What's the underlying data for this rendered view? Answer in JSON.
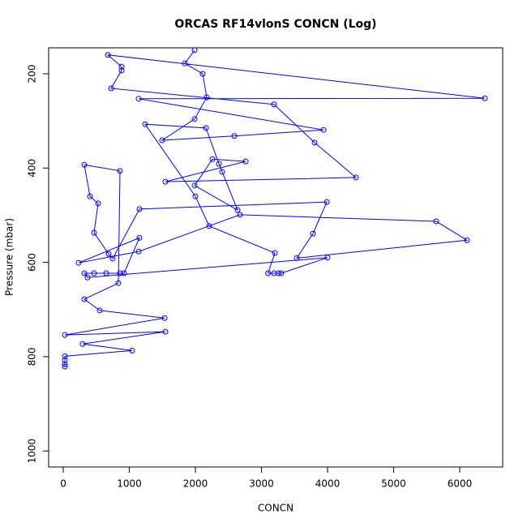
{
  "chart_data": {
    "type": "line",
    "title": "ORCAS RF14vlonS CONCN (Log)",
    "x_label": "CONCN",
    "y_label": "Pressure (mbar)",
    "color": "#0000ff",
    "xlim": [
      -221,
      6650
    ],
    "ylim": [
      1034,
      145
    ],
    "xticks": [
      0,
      1000,
      2000,
      3000,
      4000,
      5000,
      6000
    ],
    "yticks": [
      200,
      400,
      600,
      800,
      1000
    ],
    "x": [
      1988,
      1840,
      2110,
      2172,
      1988,
      1497,
      2589,
      3939,
      1141,
      6380,
      675,
      883,
      883,
      724,
      3190,
      3804,
      4429,
      1546,
      2761,
      2258,
      1988,
      2638,
      2405,
      2356,
      2160,
      1239,
      2000,
      2209,
      3202,
      3100,
      3190,
      3260,
      3300,
      4000,
      368,
      319,
      466,
      650,
      859,
      920,
      1153,
      233,
      1141,
      2675,
      5644,
      6110,
      3534,
      3779,
      3988,
      1153,
      748,
      687,
      466,
      528,
      405,
      319,
      859,
      834,
      319,
      552,
      1534,
      25,
      1546,
      294,
      1043,
      25,
      25,
      25,
      25
    ],
    "values": [
      150,
      178,
      200,
      250,
      296,
      341,
      332,
      319,
      253,
      252,
      160,
      185,
      193,
      231,
      265,
      346,
      420,
      429,
      386,
      381,
      437,
      489,
      408,
      391,
      315,
      307,
      460,
      523,
      580,
      623,
      623,
      623,
      623,
      590,
      632,
      623,
      623,
      623,
      623,
      623,
      548,
      601,
      577,
      499,
      513,
      553,
      591,
      539,
      472,
      487,
      592,
      582,
      537,
      475,
      460,
      393,
      406,
      644,
      678,
      702,
      718,
      754,
      747,
      773,
      787,
      799,
      807,
      816,
      821
    ]
  }
}
